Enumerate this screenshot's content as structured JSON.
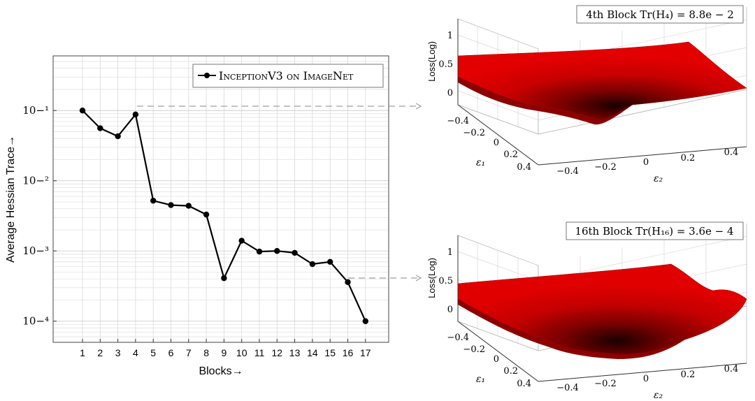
{
  "chart_data": [
    {
      "type": "line",
      "title": "",
      "xlabel": "Blocks→",
      "ylabel": "Average Hessian Trace→",
      "yscale": "log",
      "ylim": [
        5e-05,
        0.6
      ],
      "ytick_labels": [
        "10−⁴",
        "10−³",
        "10−²",
        "10−¹"
      ],
      "ytick_values": [
        0.0001,
        0.001,
        0.01,
        0.1
      ],
      "grid": true,
      "legend_position": "top-right",
      "categories": [
        "1",
        "2",
        "3",
        "4",
        "5",
        "6",
        "7",
        "8",
        "9",
        "10",
        "11",
        "12",
        "13",
        "14",
        "15",
        "16",
        "17"
      ],
      "series": [
        {
          "name": "InceptionV3 on ImageNet",
          "color": "#000000",
          "values": [
            0.1,
            0.056,
            0.043,
            0.088,
            0.0052,
            0.0045,
            0.0044,
            0.0033,
            0.00041,
            0.0014,
            0.00098,
            0.001,
            0.00094,
            0.00065,
            0.0007,
            0.00036,
            0.0001
          ]
        }
      ]
    },
    {
      "type": "surface",
      "title": "4th Block Tr(H₄) = 8.8e − 2",
      "zlabel": "Loss(Log)",
      "xlabel": "ε₁",
      "ylabel": "ε₂",
      "z_ticks": [
        "0",
        "0.5",
        "1"
      ],
      "x_ticks": [
        "−0.4",
        "−0.2",
        "0",
        "0.2",
        "0.4"
      ],
      "y_ticks": [
        "−0.4",
        "−0.2",
        "0",
        "0.2",
        "0.4"
      ],
      "surface_color": "#d40000",
      "linked_block": "4"
    },
    {
      "type": "surface",
      "title": "16th Block Tr(H₁₆) = 3.6e − 4",
      "zlabel": "Loss(Log)",
      "xlabel": "ε₁",
      "ylabel": "ε₂",
      "z_ticks": [
        "0",
        "0.5",
        "1"
      ],
      "x_ticks": [
        "−0.4",
        "−0.2",
        "0",
        "0.2",
        "0.4"
      ],
      "y_ticks": [
        "−0.4",
        "−0.2",
        "0",
        "0.2",
        "0.4"
      ],
      "surface_color": "#d40000",
      "linked_block": "16"
    }
  ]
}
